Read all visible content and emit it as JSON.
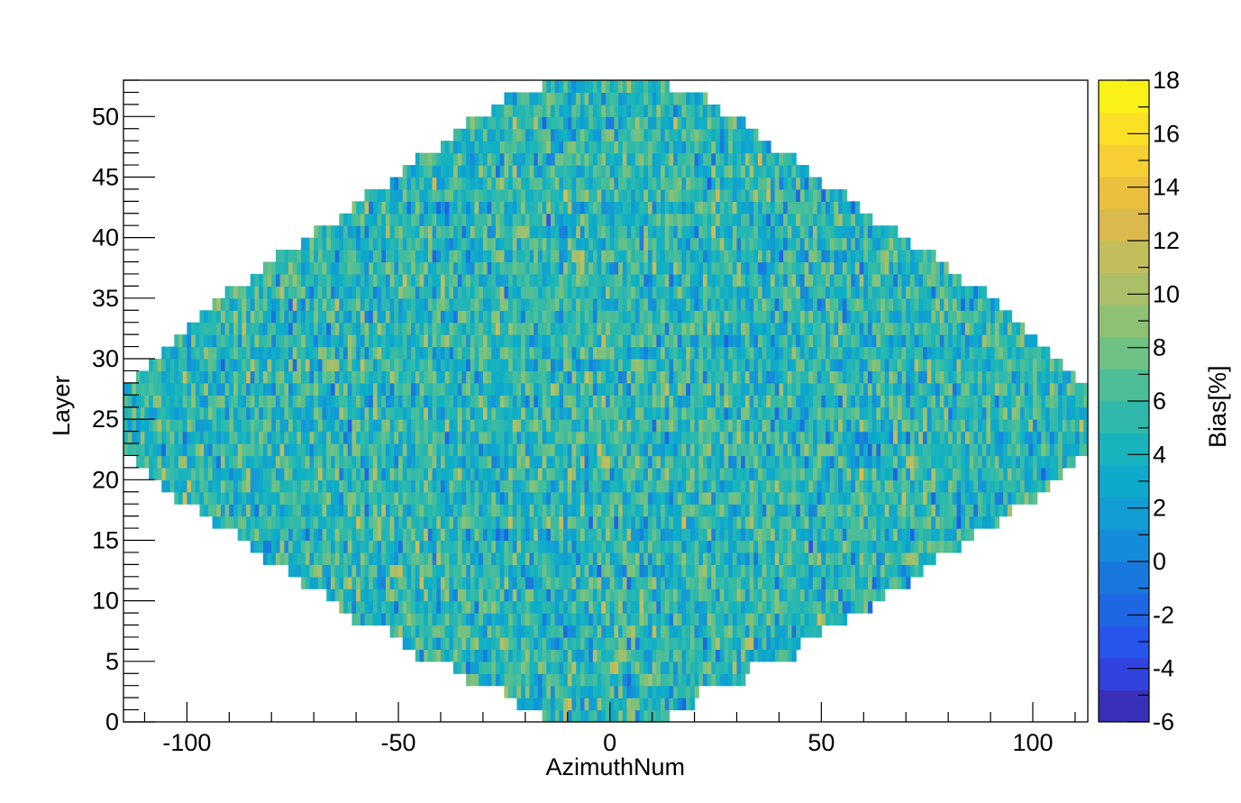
{
  "chart_data": {
    "type": "heatmap",
    "title": "",
    "xlabel": "AzimuthNum",
    "ylabel": "Layer",
    "zlabel": "Bias[%]",
    "xlim": [
      -115,
      113
    ],
    "ylim": [
      0,
      53
    ],
    "zlim": [
      -6,
      18
    ],
    "x_ticks": [
      -100,
      -50,
      0,
      50,
      100
    ],
    "y_ticks": [
      0,
      5,
      10,
      15,
      20,
      25,
      30,
      35,
      40,
      45,
      50
    ],
    "z_ticks": [
      -6,
      -4,
      -2,
      0,
      2,
      4,
      6,
      8,
      10,
      12,
      14,
      16,
      18
    ],
    "x_tick_labels": [
      "-100",
      "-50",
      "0",
      "50",
      "100"
    ],
    "y_tick_labels": [
      "0",
      "5",
      "10",
      "15",
      "20",
      "25",
      "30",
      "35",
      "40",
      "45",
      "50"
    ],
    "z_tick_labels": [
      "-6",
      "-4",
      "-2",
      "0",
      "2",
      "4",
      "6",
      "8",
      "10",
      "12",
      "14",
      "16",
      "18"
    ],
    "layers": 53,
    "layer_azimuth_range": [
      [
        -16,
        14
      ],
      [
        -22,
        20
      ],
      [
        -25,
        21
      ],
      [
        -34,
        32
      ],
      [
        -37,
        33
      ],
      [
        -46,
        44
      ],
      [
        -49,
        45
      ],
      [
        -52,
        50
      ],
      [
        -61,
        56
      ],
      [
        -64,
        62
      ],
      [
        -67,
        65
      ],
      [
        -73,
        71
      ],
      [
        -76,
        74
      ],
      [
        -82,
        77
      ],
      [
        -85,
        83
      ],
      [
        -88,
        86
      ],
      [
        -94,
        92
      ],
      [
        -97,
        95
      ],
      [
        -103,
        101
      ],
      [
        -106,
        104
      ],
      [
        -109,
        107
      ],
      [
        -112,
        110
      ],
      [
        -115,
        113
      ],
      [
        -115,
        113
      ],
      [
        -115,
        113
      ],
      [
        -115,
        113
      ],
      [
        -115,
        113
      ],
      [
        -115,
        113
      ],
      [
        -112,
        110
      ],
      [
        -109,
        107
      ],
      [
        -106,
        104
      ],
      [
        -103,
        101
      ],
      [
        -100,
        98
      ],
      [
        -97,
        95
      ],
      [
        -94,
        92
      ],
      [
        -91,
        89
      ],
      [
        -85,
        83
      ],
      [
        -82,
        80
      ],
      [
        -79,
        77
      ],
      [
        -73,
        71
      ],
      [
        -70,
        68
      ],
      [
        -64,
        62
      ],
      [
        -61,
        59
      ],
      [
        -58,
        56
      ],
      [
        -52,
        50
      ],
      [
        -49,
        47
      ],
      [
        -46,
        44
      ],
      [
        -40,
        38
      ],
      [
        -37,
        35
      ],
      [
        -34,
        32
      ],
      [
        -28,
        26
      ],
      [
        -25,
        23
      ],
      [
        -16,
        14
      ]
    ],
    "value_distribution": {
      "mean": 5.0,
      "std": 2.6,
      "min": -6,
      "max": 18
    },
    "palette": "Parula",
    "colors": [
      "#3d26a8",
      "#2c4df0",
      "#1a6ee0",
      "#1396d8",
      "#0db0c6",
      "#3cbca1",
      "#80c27a",
      "#b8be62",
      "#e5b845",
      "#fcd72e",
      "#f9fb0e"
    ]
  }
}
